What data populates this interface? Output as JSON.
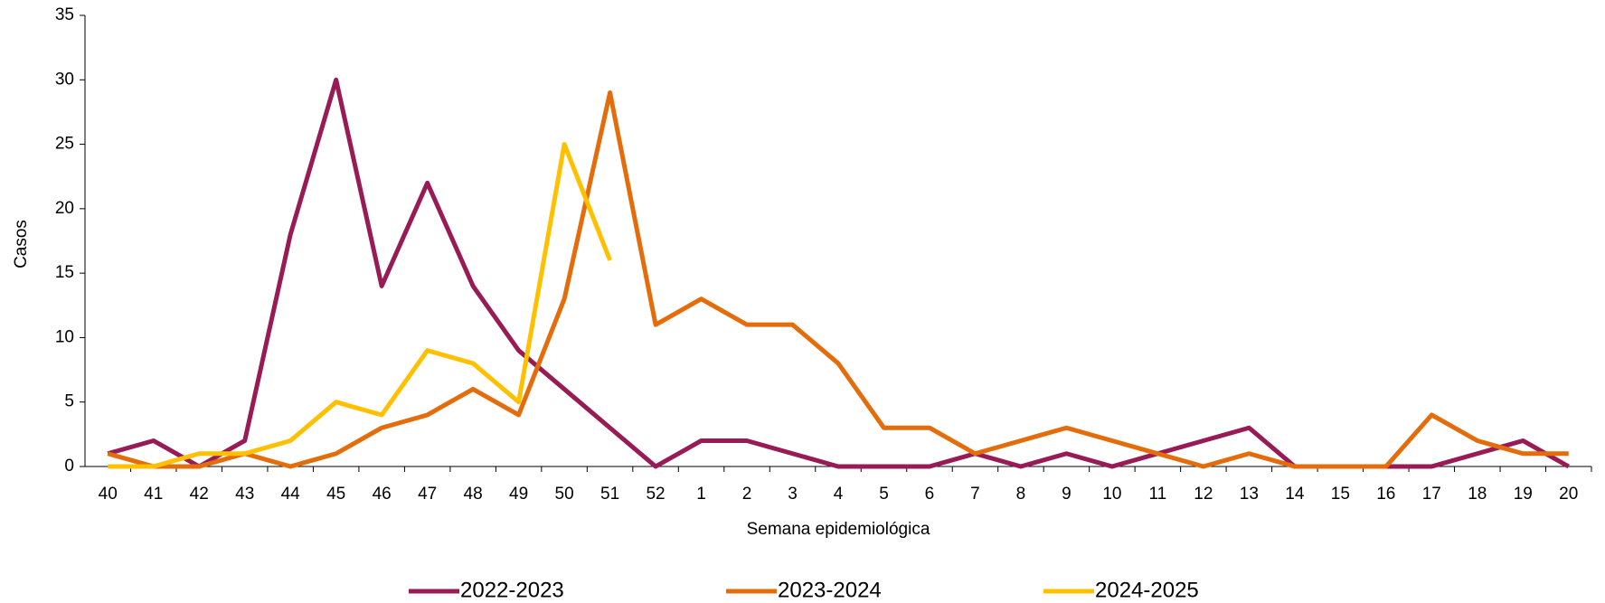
{
  "chart_data": {
    "type": "line",
    "y_label": "Casos",
    "x_label": "Semana epidemiológica",
    "categories": [
      "40",
      "41",
      "42",
      "43",
      "44",
      "45",
      "46",
      "47",
      "48",
      "49",
      "50",
      "51",
      "52",
      "1",
      "2",
      "3",
      "4",
      "5",
      "6",
      "7",
      "8",
      "9",
      "10",
      "11",
      "12",
      "13",
      "14",
      "15",
      "16",
      "17",
      "18",
      "19",
      "20"
    ],
    "series": [
      {
        "name": "2022-2023",
        "color": "#981b55",
        "values": [
          1,
          2,
          0,
          2,
          18,
          30,
          14,
          22,
          14,
          9,
          6,
          3,
          0,
          2,
          2,
          1,
          0,
          0,
          0,
          1,
          0,
          1,
          0,
          1,
          2,
          3,
          0,
          0,
          0,
          0,
          1,
          2,
          0
        ]
      },
      {
        "name": "2023-2024",
        "color": "#e46c0a",
        "values": [
          1,
          0,
          0,
          1,
          0,
          1,
          3,
          4,
          6,
          4,
          13,
          29,
          11,
          13,
          11,
          11,
          8,
          3,
          3,
          1,
          2,
          3,
          2,
          1,
          0,
          1,
          0,
          0,
          0,
          4,
          2,
          1,
          1
        ]
      },
      {
        "name": "2024-2025",
        "color": "#ffc000",
        "values": [
          0,
          0,
          1,
          1,
          2,
          5,
          4,
          9,
          8,
          5,
          25,
          16,
          null,
          null,
          null,
          null,
          null,
          null,
          null,
          null,
          null,
          null,
          null,
          null,
          null,
          null,
          null,
          null,
          null,
          null,
          null,
          null,
          null
        ]
      }
    ],
    "ylim": [
      0,
      35
    ],
    "yticks": [
      0,
      5,
      10,
      15,
      20,
      25,
      30,
      35
    ],
    "grid": false,
    "legend": "bottom"
  }
}
